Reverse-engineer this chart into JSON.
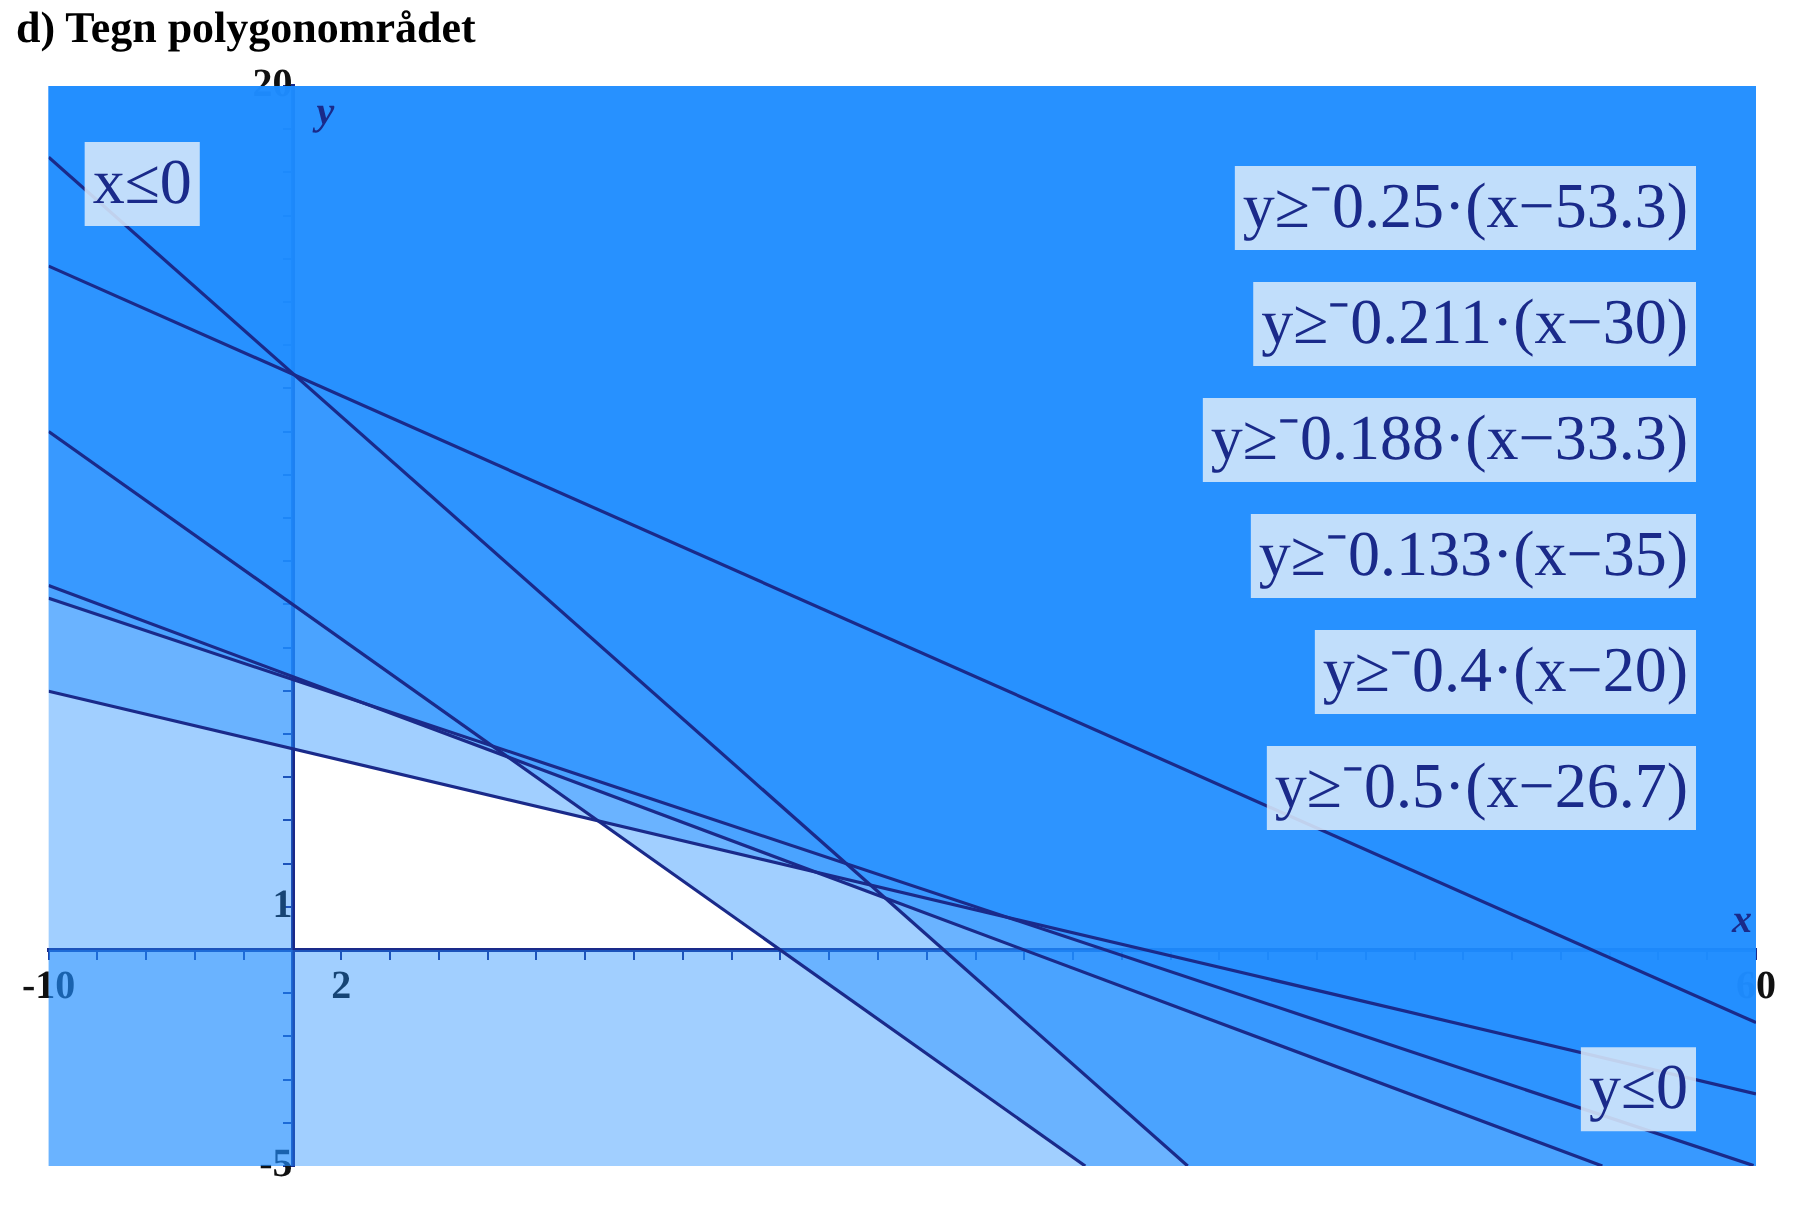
{
  "chart_data": {
    "type": "line",
    "title": "d) Tegn polygonområdet",
    "xlabel": "x",
    "ylabel": "y",
    "xlim": [
      -10,
      60
    ],
    "ylim": [
      -5,
      20
    ],
    "xticks": [
      -10,
      {
        "value": -8,
        "label": null
      },
      {
        "value": -6,
        "label": null
      },
      {
        "value": -4,
        "label": null
      },
      {
        "value": -2,
        "label": null
      },
      2,
      {
        "value": 4,
        "label": null
      },
      {
        "value": 6,
        "label": null
      },
      {
        "value": 8,
        "label": null
      },
      {
        "value": 10,
        "label": null
      },
      {
        "value": 12,
        "label": null
      },
      {
        "value": 14,
        "label": null
      },
      {
        "value": 16,
        "label": null
      },
      {
        "value": 18,
        "label": null
      },
      {
        "value": 20,
        "label": null
      },
      {
        "value": 22,
        "label": null
      },
      {
        "value": 24,
        "label": null
      },
      {
        "value": 26,
        "label": null
      },
      {
        "value": 28,
        "label": null
      },
      {
        "value": 30,
        "label": null
      },
      {
        "value": 32,
        "label": null
      },
      {
        "value": 34,
        "label": null
      },
      {
        "value": 36,
        "label": null
      },
      {
        "value": 38,
        "label": null
      },
      {
        "value": 40,
        "label": null
      },
      {
        "value": 42,
        "label": null
      },
      {
        "value": 44,
        "label": null
      },
      {
        "value": 46,
        "label": null
      },
      {
        "value": 48,
        "label": null
      },
      {
        "value": 50,
        "label": null
      },
      {
        "value": 52,
        "label": null
      },
      {
        "value": 54,
        "label": null
      },
      {
        "value": 56,
        "label": null
      },
      {
        "value": 58,
        "label": null
      },
      60
    ],
    "yticks": [
      -5,
      {
        "value": -4,
        "label": null
      },
      {
        "value": -3,
        "label": null
      },
      {
        "value": -2,
        "label": null
      },
      {
        "value": -1,
        "label": null
      },
      1,
      {
        "value": 2,
        "label": null
      },
      {
        "value": 3,
        "label": null
      },
      {
        "value": 4,
        "label": null
      },
      {
        "value": 5,
        "label": null
      },
      {
        "value": 6,
        "label": null
      },
      {
        "value": 7,
        "label": null
      },
      {
        "value": 8,
        "label": null
      },
      {
        "value": 9,
        "label": null
      },
      {
        "value": 10,
        "label": null
      },
      {
        "value": 11,
        "label": null
      },
      {
        "value": 12,
        "label": null
      },
      {
        "value": 13,
        "label": null
      },
      {
        "value": 14,
        "label": null
      },
      {
        "value": 15,
        "label": null
      },
      {
        "value": 16,
        "label": null
      },
      {
        "value": 17,
        "label": null
      },
      {
        "value": 18,
        "label": null
      },
      {
        "value": 19,
        "label": null
      },
      20
    ],
    "grid": false,
    "marker": "none",
    "line_style": "solid",
    "annotations": [
      "y≥⁻0.25·(x−53.3)",
      "y≥⁻0.211·(x−30)",
      "y≥⁻0.188·(x−33.3)",
      "y≥⁻0.133·(x−35)",
      "y≥⁻0.4·(x−20)",
      "y≥⁻0.5·(x−26.7)"
    ],
    "series": [
      {
        "color": "#1a2a8a",
        "x": [
          -10,
          60
        ],
        "values": [
          15.83,
          -1.68
        ]
      },
      {
        "color": "#1a2a8a",
        "x": [
          -10,
          53.7
        ],
        "values": [
          8.44,
          -5
        ]
      },
      {
        "color": "#1a2a8a",
        "x": [
          -10,
          59.9
        ],
        "values": [
          8.14,
          -4.99
        ]
      },
      {
        "color": "#1a2a8a",
        "x": [
          -10,
          60
        ],
        "values": [
          5.99,
          -3.33
        ]
      },
      {
        "color": "#1a2a8a",
        "x": [
          -10,
          32.5
        ],
        "values": [
          12,
          -5
        ]
      },
      {
        "color": "#1a2a8a",
        "x": [
          -10,
          36.7
        ],
        "values": [
          18.35,
          -5
        ]
      }
    ],
    "bands": [
      {
        "axis": "x",
        "from": -10,
        "to": 0,
        "label": "x≤0",
        "color": "#1e8cff"
      },
      {
        "axis": "y",
        "from": -5,
        "to": 0,
        "label": "y≤0",
        "color": "#1e8cff"
      }
    ]
  }
}
